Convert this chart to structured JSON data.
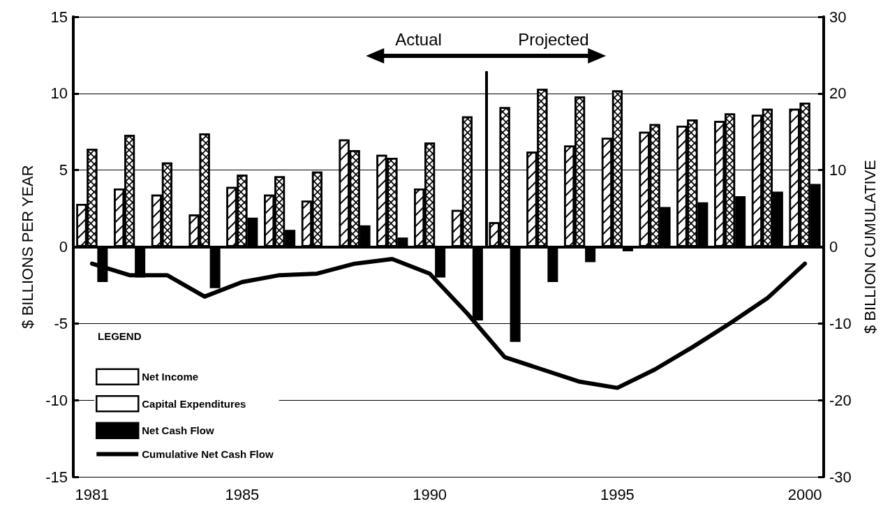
{
  "chart_data": {
    "type": "bar",
    "ylabel": "$ BILLIONS PER YEAR",
    "y2label": "$ BILLION CUMULATIVE",
    "legend_title": "LEGEND",
    "x": [
      1981,
      1982,
      1983,
      1984,
      1985,
      1986,
      1987,
      1988,
      1989,
      1990,
      1991,
      1992,
      1993,
      1994,
      1995,
      1996,
      1997,
      1998,
      1999,
      2000
    ],
    "series": [
      {
        "name": "Net Income",
        "color": "#ffffff",
        "values": [
          2.8,
          3.8,
          3.4,
          2.1,
          3.9,
          3.4,
          3.0,
          7.0,
          6.0,
          3.8,
          2.4,
          1.6,
          6.2,
          6.6,
          7.1,
          7.5,
          7.9,
          8.2,
          8.6,
          9.0
        ]
      },
      {
        "name": "Capital Expenditures",
        "color": "#ffffff",
        "values": [
          6.4,
          7.3,
          5.5,
          7.4,
          4.7,
          4.6,
          4.9,
          6.3,
          5.8,
          6.8,
          8.5,
          9.1,
          10.3,
          9.8,
          10.2,
          8.0,
          8.3,
          8.7,
          9.0,
          9.4
        ]
      },
      {
        "name": "Net Cash Flow",
        "color": "#000000",
        "values": [
          -2.3,
          -2.0,
          null,
          -2.7,
          1.9,
          1.1,
          null,
          1.4,
          0.6,
          -2.0,
          -4.8,
          -6.2,
          -2.3,
          -1.0,
          -0.3,
          2.6,
          2.9,
          3.3,
          3.6,
          4.1
        ]
      },
      {
        "name": "Cumulative Net Cash Flow",
        "type": "line",
        "axis": "y2",
        "color": "#000000",
        "values": [
          -2.2,
          -3.7,
          -3.7,
          -6.5,
          -4.6,
          -3.7,
          -3.5,
          -2.2,
          -1.6,
          -3.5,
          -8.7,
          -14.4,
          -16.0,
          -17.6,
          -18.4,
          -16.0,
          -13.1,
          -10.0,
          -6.7,
          -2.2
        ]
      }
    ],
    "xlim": [
      1980.5,
      2000.5
    ],
    "xticks": [
      1981,
      1985,
      1990,
      1995,
      2000
    ],
    "ylim": [
      -15,
      15
    ],
    "yticks": [
      -15,
      -10,
      -5,
      0,
      5,
      10,
      15
    ],
    "y2lim": [
      -30,
      30
    ],
    "y2ticks": [
      -30,
      -20,
      -10,
      0,
      10,
      20,
      30
    ],
    "ref_lines": [
      {
        "axis": "x",
        "value": 1991.5,
        "color": "#000000"
      }
    ],
    "annotations": [
      "Actual",
      "Projected"
    ],
    "grid": "y",
    "legend": "bottom left",
    "marker": "none",
    "line_style": "solid"
  }
}
